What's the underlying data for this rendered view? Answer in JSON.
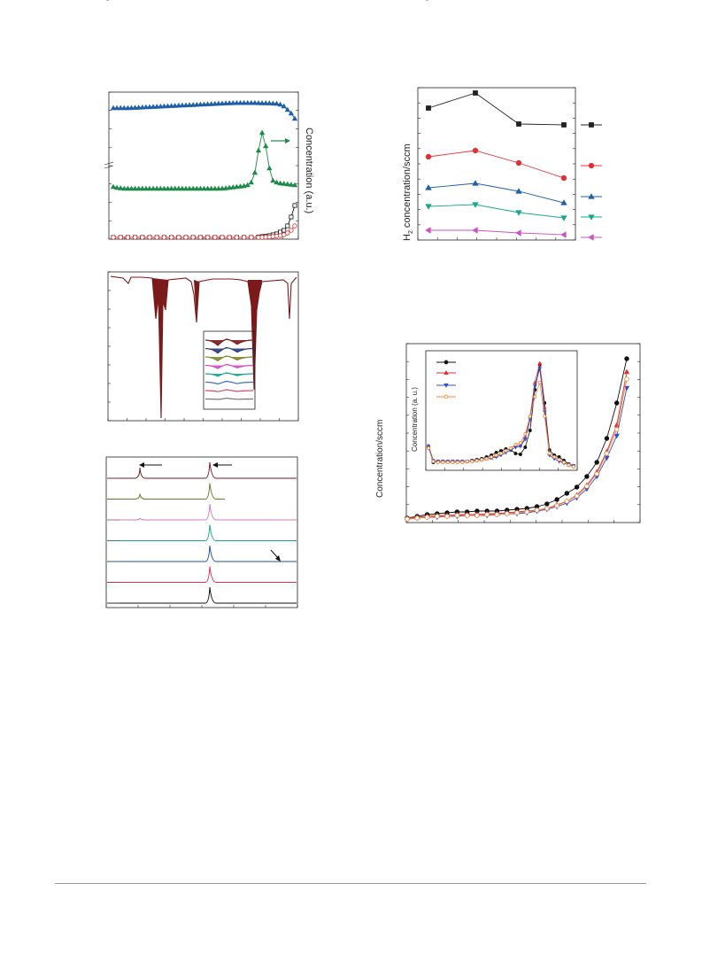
{
  "chart_data": [
    {
      "id": "a",
      "type": "scatter",
      "title": "",
      "ylabel_right": "Concentration (a.u.)",
      "axis_break": true,
      "series": [
        {
          "name": "",
          "color": "#1f5fa8",
          "marker": "triangle-up",
          "fill": true,
          "y": [
            122,
            122,
            122,
            122,
            122,
            121.8,
            121.6,
            121.4,
            121.2,
            121,
            120.8,
            120.6,
            120.4,
            120.2,
            120,
            119.8,
            119.6,
            119.4,
            119.2,
            119,
            118.8,
            118.6,
            118.4,
            118.2,
            118,
            117.8,
            117.6,
            117.4,
            117.2,
            117,
            116.8,
            116.6,
            116.4,
            116.3,
            116.2,
            116.2,
            116.2,
            116.2,
            116.2,
            116.2,
            116.3,
            116.4,
            116.5,
            116.6,
            116.8,
            117,
            118,
            120,
            124,
            128,
            134
          ]
        },
        {
          "name": "",
          "color": "#1d8a4a",
          "marker": "triangle-up",
          "fill": true,
          "y": [
            211,
            212,
            212.5,
            213,
            213,
            213,
            213,
            213,
            213,
            213,
            213,
            213,
            213,
            213,
            213,
            213,
            213,
            213,
            213,
            213,
            213,
            213,
            213,
            213,
            213,
            213,
            213,
            213,
            213,
            213,
            212.8,
            212.5,
            212,
            211.5,
            211,
            210.5,
            210,
            209,
            206,
            195,
            170,
            150,
            165,
            190,
            204,
            206,
            207,
            207.5,
            208,
            208.5,
            209
          ]
        },
        {
          "name": "",
          "color": "#111111",
          "marker": "square",
          "fill": false,
          "y": [
            268,
            268,
            268,
            268,
            268,
            268,
            268,
            268,
            268,
            268,
            268,
            268,
            268,
            268,
            268,
            268,
            268,
            268,
            268,
            268,
            268,
            268,
            268,
            268,
            268,
            268,
            268,
            268,
            268,
            268,
            268,
            268,
            268,
            268,
            268,
            268,
            268,
            268,
            268,
            267.8,
            267.5,
            267,
            266.5,
            266,
            265,
            264,
            262,
            260,
            255,
            245,
            232
          ]
        },
        {
          "name": "",
          "color": "#e03030",
          "marker": "circle",
          "fill": false,
          "y": [
            268,
            268,
            268,
            268,
            268,
            268,
            268,
            268,
            268,
            268,
            268,
            268,
            268,
            268,
            268,
            268,
            268,
            268,
            268,
            268,
            268,
            268,
            268,
            268,
            268,
            268,
            268,
            268,
            268,
            268,
            268,
            268,
            268,
            268,
            268,
            268,
            268,
            268,
            268,
            268,
            268,
            268,
            267.8,
            267.5,
            267,
            266.5,
            266,
            265,
            263,
            260,
            255
          ]
        }
      ],
      "annotation_arrow": "right"
    },
    {
      "id": "b",
      "type": "line",
      "title": "",
      "inset_series_colors": [
        "#7b1a1a",
        "#2a3d7f",
        "#7d8a2a",
        "#d050c0",
        "#1aa58e",
        "#3c70c0",
        "#d54b6a",
        "#777777"
      ]
    },
    {
      "id": "c",
      "type": "line",
      "title": "",
      "series": [
        {
          "name": "",
          "color": "#7b1a1a"
        },
        {
          "name": "",
          "color": "#6b7a2b"
        },
        {
          "name": "",
          "color": "#d078c8"
        },
        {
          "name": "",
          "color": "#1aa58e"
        },
        {
          "name": "",
          "color": "#1f4e9c"
        },
        {
          "name": "",
          "color": "#e03050"
        },
        {
          "name": "",
          "color": "#111111"
        }
      ],
      "arrows": 3
    },
    {
      "id": "d",
      "type": "line",
      "title": "",
      "ylabel": "H2 concentration/sccm",
      "ylabel_main": "H",
      "ylabel_sub": "2",
      "ylabel_rest": " concentration/sccm",
      "x": [
        0,
        1,
        2,
        3
      ],
      "series": [
        {
          "name": "",
          "color": "#222222",
          "marker": "square",
          "values": [
            122,
            105,
            140,
            141
          ]
        },
        {
          "name": "",
          "color": "#e03030",
          "marker": "circle",
          "values": [
            177,
            170,
            184,
            201
          ]
        },
        {
          "name": "",
          "color": "#1f5fa8",
          "marker": "triangle-up",
          "values": [
            212,
            207,
            216,
            229
          ]
        },
        {
          "name": "",
          "color": "#1aa58e",
          "marker": "triangle-down",
          "values": [
            233,
            231,
            240,
            246
          ]
        },
        {
          "name": "",
          "color": "#d050c0",
          "marker": "triangle-left",
          "values": [
            260,
            260,
            263,
            265
          ]
        }
      ]
    },
    {
      "id": "e",
      "type": "line",
      "title": "",
      "ylabel": "Concentration/sccm",
      "inset_ylabel": "Concentration (a. u.)",
      "series": [
        {
          "name": "",
          "color": "#111111",
          "marker": "circle",
          "fill": true,
          "y": [
            585,
            583,
            581,
            580,
            579,
            578,
            578,
            577,
            577,
            577,
            576,
            575,
            574,
            572,
            569,
            564,
            557,
            550,
            538,
            522,
            495,
            455,
            405
          ]
        },
        {
          "name": "",
          "color": "#e03030",
          "marker": "triangle-up",
          "fill": true,
          "y": [
            585,
            584,
            583,
            582,
            582,
            581,
            581,
            581,
            580,
            580,
            579,
            578,
            577,
            576,
            574,
            570,
            566,
            559,
            548,
            533,
            510,
            480,
            420
          ]
        },
        {
          "name": "",
          "color": "#3050d0",
          "marker": "triangle-down",
          "fill": true,
          "y": [
            586,
            585,
            584,
            584,
            583,
            583,
            582,
            582,
            582,
            581,
            580,
            580,
            579,
            577,
            575,
            572,
            568,
            562,
            552,
            538,
            517,
            492,
            438
          ]
        },
        {
          "name": "",
          "color": "#f08a3a",
          "marker": "circle",
          "fill": false,
          "y": [
            586,
            585,
            584,
            583,
            583,
            582,
            582,
            582,
            581,
            581,
            580,
            579,
            578,
            576,
            574,
            571,
            566,
            560,
            549,
            535,
            512,
            485,
            428
          ]
        }
      ]
    }
  ]
}
